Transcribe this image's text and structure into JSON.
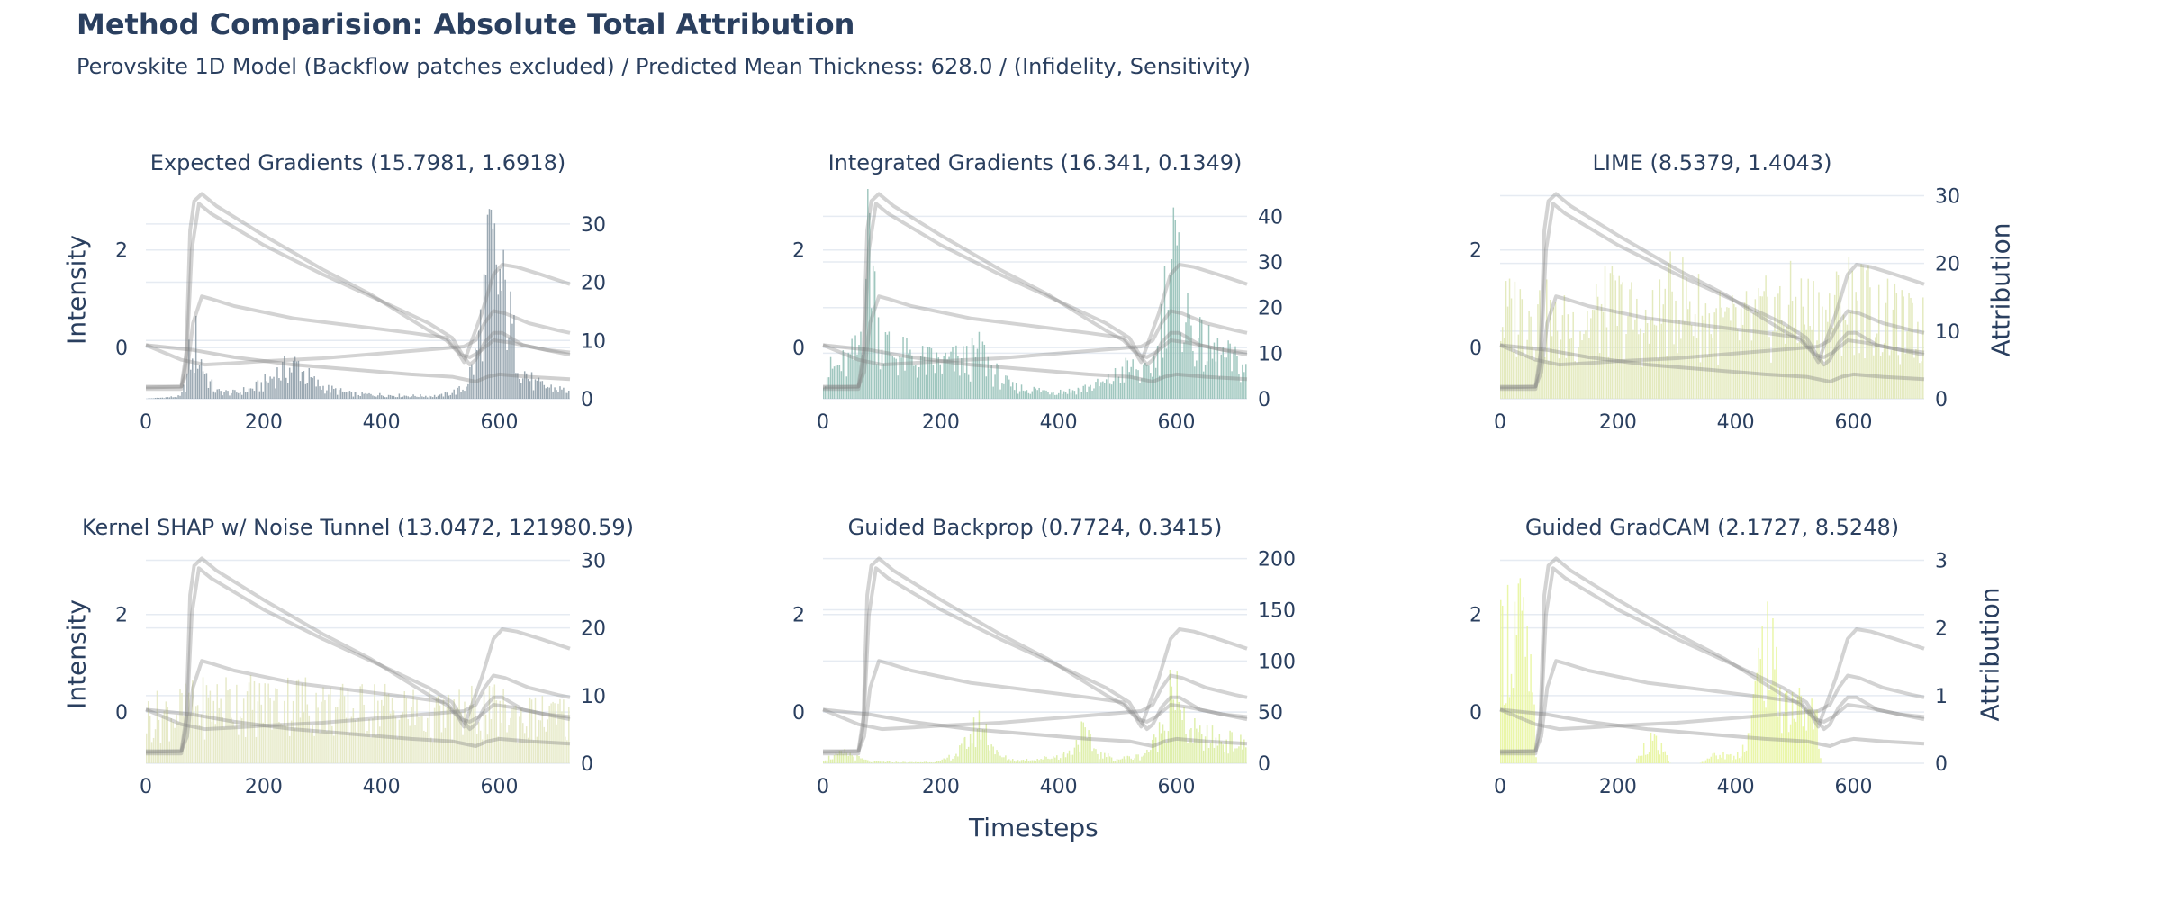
{
  "title": "Method Comparision: Absolute Total Attribution",
  "subtitle": "Perovskite 1D Model (Backflow patches excluded) / Predicted Mean Thickness: 628.0 / (Infidelity, Sensitivity)",
  "shared_labels": {
    "x": "Timesteps",
    "y_left": "Intensity",
    "y_right": "Attribution"
  },
  "chart_data": [
    {
      "type": "bar",
      "title": "Expected Gradients (15.7981, 1.6918)",
      "bar_color": "#8a9aa6",
      "x_range": [
        0,
        720
      ],
      "x_ticks": [
        0,
        200,
        400,
        600
      ],
      "y_left_ticks": [
        0,
        2
      ],
      "y_right_range": [
        0,
        36
      ],
      "y_right_ticks": [
        0,
        10,
        20,
        30
      ],
      "attribution_profile": [
        [
          0,
          0
        ],
        [
          60,
          0.5
        ],
        [
          70,
          4
        ],
        [
          75,
          10
        ],
        [
          80,
          6
        ],
        [
          85,
          12
        ],
        [
          90,
          9
        ],
        [
          100,
          6
        ],
        [
          110,
          3
        ],
        [
          120,
          1.5
        ],
        [
          150,
          1.2
        ],
        [
          180,
          2
        ],
        [
          200,
          3
        ],
        [
          220,
          5
        ],
        [
          240,
          6
        ],
        [
          260,
          7
        ],
        [
          270,
          5
        ],
        [
          290,
          3
        ],
        [
          310,
          2
        ],
        [
          350,
          1
        ],
        [
          400,
          0.8
        ],
        [
          450,
          0.6
        ],
        [
          500,
          0.6
        ],
        [
          540,
          2
        ],
        [
          560,
          8
        ],
        [
          575,
          20
        ],
        [
          585,
          30
        ],
        [
          595,
          26
        ],
        [
          605,
          22
        ],
        [
          615,
          18
        ],
        [
          625,
          12
        ],
        [
          640,
          6
        ],
        [
          660,
          3
        ],
        [
          700,
          2
        ],
        [
          720,
          1.5
        ]
      ]
    },
    {
      "type": "bar",
      "title": "Integrated Gradients (16.341, 0.1349)",
      "bar_color": "#8fbdb4",
      "x_range": [
        0,
        720
      ],
      "x_ticks": [
        0,
        200,
        400,
        600
      ],
      "y_left_ticks": [
        0,
        2
      ],
      "y_right_range": [
        0,
        46
      ],
      "y_right_ticks": [
        0,
        10,
        20,
        30,
        40
      ],
      "attribution_profile": [
        [
          0,
          6
        ],
        [
          20,
          8
        ],
        [
          40,
          9
        ],
        [
          60,
          12
        ],
        [
          70,
          25
        ],
        [
          75,
          40
        ],
        [
          80,
          46
        ],
        [
          85,
          35
        ],
        [
          90,
          22
        ],
        [
          100,
          15
        ],
        [
          120,
          12
        ],
        [
          150,
          10
        ],
        [
          200,
          9
        ],
        [
          250,
          10
        ],
        [
          270,
          12
        ],
        [
          290,
          7
        ],
        [
          320,
          3
        ],
        [
          380,
          2
        ],
        [
          420,
          2
        ],
        [
          480,
          4
        ],
        [
          520,
          8
        ],
        [
          550,
          6
        ],
        [
          570,
          12
        ],
        [
          585,
          32
        ],
        [
          595,
          38
        ],
        [
          605,
          28
        ],
        [
          620,
          20
        ],
        [
          640,
          14
        ],
        [
          660,
          12
        ],
        [
          690,
          10
        ],
        [
          720,
          8
        ]
      ]
    },
    {
      "type": "bar",
      "title": "LIME (8.5379, 1.4043)",
      "bar_color": "#dfe6b4",
      "x_range": [
        0,
        720
      ],
      "x_ticks": [
        0,
        200,
        400,
        600
      ],
      "y_left_ticks": [
        0,
        2
      ],
      "y_right_range": [
        0,
        31
      ],
      "y_right_ticks": [
        0,
        10,
        20,
        30
      ],
      "attribution_profile": [
        [
          0,
          14
        ],
        [
          50,
          16
        ],
        [
          100,
          12
        ],
        [
          150,
          14
        ],
        [
          200,
          16
        ],
        [
          250,
          12
        ],
        [
          300,
          18
        ],
        [
          350,
          14
        ],
        [
          400,
          12
        ],
        [
          450,
          14
        ],
        [
          500,
          16
        ],
        [
          550,
          14
        ],
        [
          600,
          18
        ],
        [
          650,
          14
        ],
        [
          700,
          12
        ],
        [
          720,
          12
        ]
      ]
    },
    {
      "type": "bar",
      "title": "Kernel SHAP w/ Noise Tunnel (13.0472, 121980.59)",
      "bar_color": "#e3e6bf",
      "x_range": [
        0,
        720
      ],
      "x_ticks": [
        0,
        200,
        400,
        600
      ],
      "y_left_ticks": [
        0,
        2
      ],
      "y_right_range": [
        0,
        31
      ],
      "y_right_ticks": [
        0,
        10,
        20,
        30
      ],
      "attribution_profile": [
        [
          0,
          8
        ],
        [
          50,
          9
        ],
        [
          100,
          10
        ],
        [
          150,
          11
        ],
        [
          200,
          10
        ],
        [
          250,
          11
        ],
        [
          300,
          10
        ],
        [
          350,
          9
        ],
        [
          400,
          10
        ],
        [
          450,
          9
        ],
        [
          500,
          8
        ],
        [
          550,
          9
        ],
        [
          600,
          9
        ],
        [
          650,
          8
        ],
        [
          700,
          8
        ],
        [
          720,
          8
        ]
      ]
    },
    {
      "type": "bar",
      "title": "Guided Backprop (0.7724, 0.3415)",
      "bar_color": "#d9ec9e",
      "x_range": [
        0,
        720
      ],
      "x_ticks": [
        0,
        200,
        400,
        600
      ],
      "y_left_ticks": [
        0,
        2
      ],
      "y_right_range": [
        0,
        205
      ],
      "y_right_ticks": [
        0,
        50,
        100,
        150,
        200
      ],
      "attribution_profile": [
        [
          0,
          5
        ],
        [
          20,
          8
        ],
        [
          40,
          12
        ],
        [
          60,
          6
        ],
        [
          80,
          2
        ],
        [
          150,
          1
        ],
        [
          200,
          2
        ],
        [
          230,
          12
        ],
        [
          250,
          30
        ],
        [
          270,
          48
        ],
        [
          285,
          25
        ],
        [
          300,
          8
        ],
        [
          330,
          3
        ],
        [
          380,
          6
        ],
        [
          420,
          12
        ],
        [
          440,
          35
        ],
        [
          455,
          22
        ],
        [
          470,
          10
        ],
        [
          500,
          5
        ],
        [
          540,
          8
        ],
        [
          560,
          20
        ],
        [
          575,
          40
        ],
        [
          585,
          60
        ],
        [
          592,
          120
        ],
        [
          598,
          90
        ],
        [
          610,
          45
        ],
        [
          640,
          30
        ],
        [
          670,
          28
        ],
        [
          700,
          24
        ],
        [
          720,
          20
        ]
      ]
    },
    {
      "type": "bar",
      "title": "Guided GradCAM (2.1727, 8.5248)",
      "bar_color": "#e6f59a",
      "x_range": [
        0,
        720
      ],
      "x_ticks": [
        0,
        200,
        400,
        600
      ],
      "y_left_ticks": [
        0,
        2
      ],
      "y_right_range": [
        0,
        3.1
      ],
      "y_right_ticks": [
        0,
        1,
        2,
        3
      ],
      "attribution_profile": [
        [
          0,
          1.8
        ],
        [
          10,
          2.4
        ],
        [
          20,
          2.2
        ],
        [
          30,
          2.6
        ],
        [
          40,
          2.1
        ],
        [
          50,
          1.6
        ],
        [
          58,
          0.8
        ],
        [
          62,
          0
        ],
        [
          230,
          0
        ],
        [
          240,
          0.25
        ],
        [
          255,
          0.4
        ],
        [
          270,
          0.3
        ],
        [
          290,
          0
        ],
        [
          340,
          0
        ],
        [
          350,
          0.1
        ],
        [
          380,
          0.15
        ],
        [
          400,
          0.1
        ],
        [
          420,
          0.4
        ],
        [
          430,
          0.9
        ],
        [
          440,
          1.6
        ],
        [
          450,
          2.2
        ],
        [
          460,
          1.8
        ],
        [
          470,
          1.4
        ],
        [
          480,
          1.1
        ],
        [
          500,
          1.0
        ],
        [
          520,
          0.9
        ],
        [
          540,
          0.7
        ],
        [
          545,
          0
        ],
        [
          720,
          0
        ]
      ]
    }
  ],
  "intensity_curves": [
    {
      "color": "rgba(130,130,130,0.35)",
      "points": [
        [
          0,
          -0.85
        ],
        [
          60,
          -0.85
        ],
        [
          68,
          -0.3
        ],
        [
          75,
          2.4
        ],
        [
          82,
          3.0
        ],
        [
          95,
          3.15
        ],
        [
          120,
          2.9
        ],
        [
          200,
          2.3
        ],
        [
          300,
          1.6
        ],
        [
          380,
          1.1
        ],
        [
          440,
          0.65
        ],
        [
          480,
          0.35
        ],
        [
          510,
          0.15
        ],
        [
          530,
          -0.1
        ],
        [
          540,
          -0.3
        ],
        [
          555,
          0.2
        ],
        [
          570,
          0.7
        ],
        [
          590,
          1.5
        ],
        [
          605,
          1.7
        ],
        [
          630,
          1.65
        ],
        [
          670,
          1.5
        ],
        [
          720,
          1.3
        ]
      ]
    },
    {
      "color": "rgba(130,130,130,0.35)",
      "points": [
        [
          0,
          -0.8
        ],
        [
          60,
          -0.8
        ],
        [
          70,
          0
        ],
        [
          78,
          2.0
        ],
        [
          90,
          2.95
        ],
        [
          110,
          2.75
        ],
        [
          200,
          2.1
        ],
        [
          300,
          1.5
        ],
        [
          400,
          0.95
        ],
        [
          480,
          0.5
        ],
        [
          520,
          0.2
        ],
        [
          540,
          -0.2
        ],
        [
          550,
          -0.35
        ],
        [
          560,
          -0.25
        ],
        [
          575,
          0.1
        ],
        [
          590,
          0.3
        ],
        [
          605,
          0.3
        ],
        [
          640,
          0.05
        ],
        [
          700,
          -0.1
        ],
        [
          720,
          -0.15
        ]
      ]
    },
    {
      "color": "rgba(130,130,130,0.35)",
      "points": [
        [
          0,
          -0.82
        ],
        [
          60,
          -0.8
        ],
        [
          70,
          -0.5
        ],
        [
          80,
          0.5
        ],
        [
          95,
          1.05
        ],
        [
          110,
          1.0
        ],
        [
          150,
          0.85
        ],
        [
          250,
          0.6
        ],
        [
          350,
          0.45
        ],
        [
          450,
          0.3
        ],
        [
          510,
          0.2
        ],
        [
          535,
          -0.15
        ],
        [
          550,
          -0.2
        ],
        [
          565,
          -0.1
        ],
        [
          590,
          0.15
        ],
        [
          620,
          0.1
        ],
        [
          680,
          -0.05
        ],
        [
          720,
          -0.1
        ]
      ]
    },
    {
      "color": "rgba(130,130,130,0.35)",
      "points": [
        [
          0,
          0.05
        ],
        [
          30,
          -0.1
        ],
        [
          60,
          -0.25
        ],
        [
          100,
          -0.35
        ],
        [
          150,
          -0.32
        ],
        [
          200,
          -0.28
        ],
        [
          300,
          -0.22
        ],
        [
          400,
          -0.12
        ],
        [
          500,
          -0.02
        ],
        [
          540,
          0.02
        ],
        [
          560,
          0.15
        ],
        [
          575,
          0.5
        ],
        [
          590,
          0.75
        ],
        [
          610,
          0.7
        ],
        [
          650,
          0.5
        ],
        [
          700,
          0.35
        ],
        [
          720,
          0.3
        ]
      ]
    },
    {
      "color": "rgba(120,120,120,0.35)",
      "points": [
        [
          0,
          0.05
        ],
        [
          40,
          0.0
        ],
        [
          80,
          -0.05
        ],
        [
          150,
          -0.2
        ],
        [
          250,
          -0.35
        ],
        [
          350,
          -0.45
        ],
        [
          450,
          -0.55
        ],
        [
          520,
          -0.6
        ],
        [
          560,
          -0.7
        ],
        [
          580,
          -0.6
        ],
        [
          600,
          -0.55
        ],
        [
          650,
          -0.6
        ],
        [
          720,
          -0.65
        ]
      ]
    }
  ]
}
